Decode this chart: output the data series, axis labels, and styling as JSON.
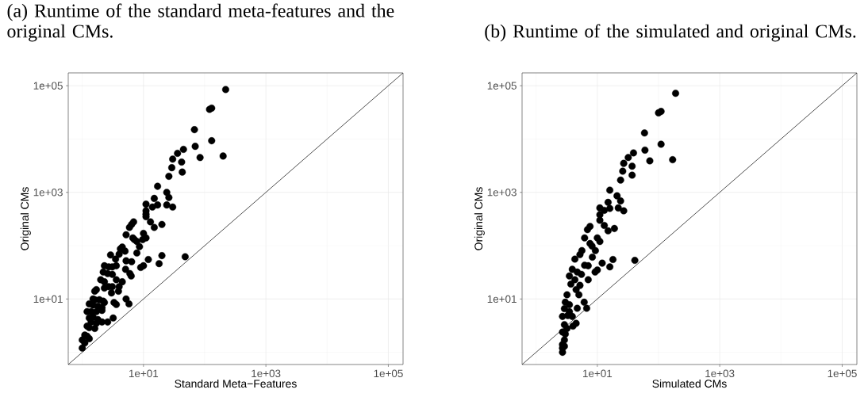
{
  "chart_data": [
    {
      "type": "scatter",
      "title": "(a) Runtime of the standard meta-features and the original CMs.",
      "xlabel": "Standard Meta−Features",
      "ylabel": "Original CMs",
      "log": "xy",
      "grid": true,
      "xlim": [
        0.59,
        174000
      ],
      "ylim": [
        0.59,
        174000
      ],
      "xticks": [
        {
          "value": 10,
          "label": "1e+01"
        },
        {
          "value": 1000,
          "label": "1e+03"
        },
        {
          "value": 100000,
          "label": "1e+05"
        }
      ],
      "yticks": [
        {
          "value": 10,
          "label": "1e+01"
        },
        {
          "value": 1000,
          "label": "1e+03"
        },
        {
          "value": 100000,
          "label": "1e+05"
        }
      ],
      "series": [
        {
          "marker": "circle",
          "color": "#000000",
          "x": [
            220,
            130,
            120,
            68,
            130,
            70,
            200,
            84,
            45,
            36,
            30,
            42,
            29,
            43,
            26,
            17,
            24,
            26,
            15,
            24,
            30,
            17,
            11,
            14,
            11,
            11,
            11,
            13,
            20,
            15,
            6.9,
            6.4,
            5.9,
            5.2,
            6.7,
            7.1,
            7.8,
            10,
            9.7,
            11,
            8.6,
            7.8,
            4.5,
            5,
            4.2,
            4,
            3.5,
            2.9,
            2.3,
            2.7,
            3.1,
            3.6,
            2.2,
            2.6,
            3.1,
            2.0,
            2.3,
            3.6,
            4.5,
            2.3,
            2.7,
            3.1,
            4.0,
            3.9,
            3.0,
            1.7,
            1.6,
            5.2,
            6.4,
            5.1,
            6.0,
            6.3,
            9.0,
            10,
            12,
            18,
            20,
            48,
            5.2,
            5.8,
            3.3,
            3.6,
            1.5,
            1.6,
            1.9,
            2.2,
            1.3,
            1.5,
            1.8,
            2.1,
            2.3,
            1.2,
            1.4,
            1.7,
            2.1,
            1.3,
            1.5,
            1.8,
            1.4,
            1.7,
            2.1,
            2.6,
            3.2,
            1.2,
            1.3,
            1.6,
            1.1,
            1.2,
            1.3,
            1.0,
            1.1,
            1.0
          ],
          "values": [
            85000,
            38000,
            36000,
            15000,
            9300,
            7300,
            4800,
            4500,
            6400,
            5400,
            4200,
            3700,
            2900,
            2400,
            2000,
            1300,
            1000,
            800,
            770,
            580,
            530,
            580,
            600,
            530,
            450,
            390,
            350,
            280,
            250,
            220,
            280,
            250,
            220,
            160,
            140,
            130,
            120,
            170,
            130,
            140,
            96,
            73,
            94,
            79,
            87,
            69,
            56,
            67,
            42,
            40,
            40,
            42,
            32,
            30,
            29,
            23,
            21,
            23,
            21,
            16,
            17,
            17,
            17,
            14,
            13,
            15,
            14,
            52,
            50,
            36,
            30,
            27,
            39,
            42,
            55,
            46,
            65,
            62,
            10,
            8.1,
            8.6,
            7.9,
            10,
            9.7,
            9.7,
            9.1,
            8.1,
            7.7,
            7.3,
            6.9,
            8.6,
            5.8,
            5.8,
            5.8,
            6.1,
            4.4,
            4.6,
            4.1,
            3.7,
            3.5,
            3.7,
            3.7,
            4.4,
            3.1,
            2.9,
            2.8,
            2.1,
            2.0,
            1.8,
            1.7,
            1.5,
            1.2
          ]
        },
        {
          "type": "line",
          "color": "#000000",
          "x": [
            0.59,
            174000
          ],
          "values": [
            0.59,
            174000
          ]
        }
      ]
    },
    {
      "type": "scatter",
      "title": "(b) Runtime of the simulated and original CMs.",
      "xlabel": "Simulated CMs",
      "ylabel": "Original CMs",
      "log": "xy",
      "grid": true,
      "xlim": [
        0.59,
        174000
      ],
      "ylim": [
        0.59,
        174000
      ],
      "xticks": [
        {
          "value": 10,
          "label": "1e+01"
        },
        {
          "value": 1000,
          "label": "1e+03"
        },
        {
          "value": 100000,
          "label": "1e+05"
        }
      ],
      "yticks": [
        {
          "value": 10,
          "label": "1e+01"
        },
        {
          "value": 1000,
          "label": "1e+03"
        },
        {
          "value": 100000,
          "label": "1e+05"
        }
      ],
      "series": [
        {
          "marker": "circle",
          "color": "#000000",
          "x": [
            190,
            100,
            110,
            59,
            110,
            60,
            170,
            72,
            39,
            32,
            27,
            37,
            26,
            37,
            24,
            16,
            21,
            24,
            15,
            11,
            13,
            16,
            22,
            27,
            11,
            11,
            13,
            15,
            19,
            7.6,
            6.9,
            6.2,
            7.6,
            10,
            11,
            9.3,
            8.2,
            5.6,
            5.2,
            4.3,
            8.3,
            6.2,
            7.1,
            12,
            10,
            9.2,
            18,
            16,
            41,
            3.9,
            4.7,
            5.5,
            7.1,
            3.5,
            4.3,
            5.2,
            3.7,
            4.5,
            3.2,
            5.0,
            6.1,
            6.7,
            4.7,
            3.0,
            3.5,
            2.9,
            3.5,
            2.7,
            3.3,
            4.5,
            4.0,
            2.9,
            3.2,
            2.7,
            3.0,
            2.9,
            2.7,
            2.7,
            2.7,
            2.9,
            3.9
          ],
          "values": [
            72000,
            31000,
            33000,
            13000,
            8000,
            6200,
            4100,
            3900,
            5500,
            4500,
            3500,
            3100,
            2500,
            2100,
            1700,
            1100,
            860,
            690,
            650,
            510,
            460,
            500,
            510,
            450,
            380,
            300,
            240,
            190,
            210,
            230,
            200,
            140,
            110,
            140,
            120,
            81,
            98,
            81,
            68,
            56,
            61,
            43,
            42,
            47,
            35,
            32,
            55,
            40,
            53,
            36,
            32,
            29,
            23,
            27,
            23,
            18,
            19,
            15,
            12,
            12,
            8.7,
            6.7,
            6.7,
            8.7,
            7.8,
            6.6,
            5.8,
            4.7,
            4.9,
            3.5,
            3.1,
            3.3,
            2.8,
            2.4,
            2.2,
            1.7,
            1.4,
            1.2,
            1.0,
            1.3,
            4.7
          ]
        },
        {
          "type": "line",
          "color": "#000000",
          "x": [
            0.59,
            174000
          ],
          "values": [
            0.59,
            174000
          ]
        }
      ]
    }
  ]
}
